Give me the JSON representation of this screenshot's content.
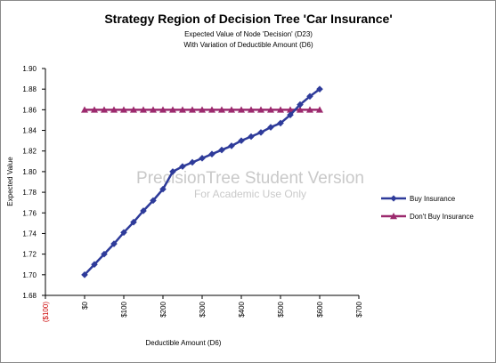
{
  "chart_data": {
    "type": "line",
    "title": "Strategy Region of Decision Tree 'Car Insurance'",
    "subtitle_lines": [
      "Expected Value of Node 'Decision' (D23)",
      "With Variation of Deductible Amount (D6)"
    ],
    "xlabel": "Deductible Amount (D6)",
    "ylabel": "Expected Value",
    "xlim": [
      -100,
      700
    ],
    "ylim": [
      1.68,
      1.9
    ],
    "x_ticks": [
      -100,
      0,
      100,
      200,
      300,
      400,
      500,
      600,
      700
    ],
    "x_tick_labels": [
      "($100)",
      "$0",
      "$100",
      "$200",
      "$300",
      "$400",
      "$500",
      "$600",
      "$700"
    ],
    "y_ticks": [
      1.68,
      1.7,
      1.72,
      1.74,
      1.76,
      1.78,
      1.8,
      1.82,
      1.84,
      1.86,
      1.88,
      1.9
    ],
    "y_tick_labels": [
      "1.68",
      "1.70",
      "1.72",
      "1.74",
      "1.76",
      "1.78",
      "1.80",
      "1.82",
      "1.84",
      "1.86",
      "1.88",
      "1.90"
    ],
    "x": [
      0,
      25,
      50,
      75,
      100,
      125,
      150,
      175,
      200,
      225,
      250,
      275,
      300,
      325,
      350,
      375,
      400,
      425,
      450,
      475,
      500,
      525,
      550,
      575,
      600
    ],
    "series": [
      {
        "name": "Buy Insurance",
        "color": "#2e3b9a",
        "marker": "diamond",
        "values": [
          1.7,
          1.71,
          1.72,
          1.73,
          1.741,
          1.751,
          1.762,
          1.772,
          1.783,
          1.8,
          1.805,
          1.809,
          1.813,
          1.817,
          1.821,
          1.825,
          1.83,
          1.834,
          1.838,
          1.843,
          1.847,
          1.855,
          1.865,
          1.873,
          1.88
        ]
      },
      {
        "name": "Don't Buy Insurance",
        "color": "#9c2a6e",
        "marker": "triangle",
        "values": [
          1.86,
          1.86,
          1.86,
          1.86,
          1.86,
          1.86,
          1.86,
          1.86,
          1.86,
          1.86,
          1.86,
          1.86,
          1.86,
          1.86,
          1.86,
          1.86,
          1.86,
          1.86,
          1.86,
          1.86,
          1.86,
          1.86,
          1.86,
          1.86,
          1.86
        ]
      }
    ],
    "legend_position": "right",
    "grid": false,
    "watermark": {
      "line1": "PrecisionTree Student Version",
      "line2": "For Academic Use Only"
    }
  }
}
